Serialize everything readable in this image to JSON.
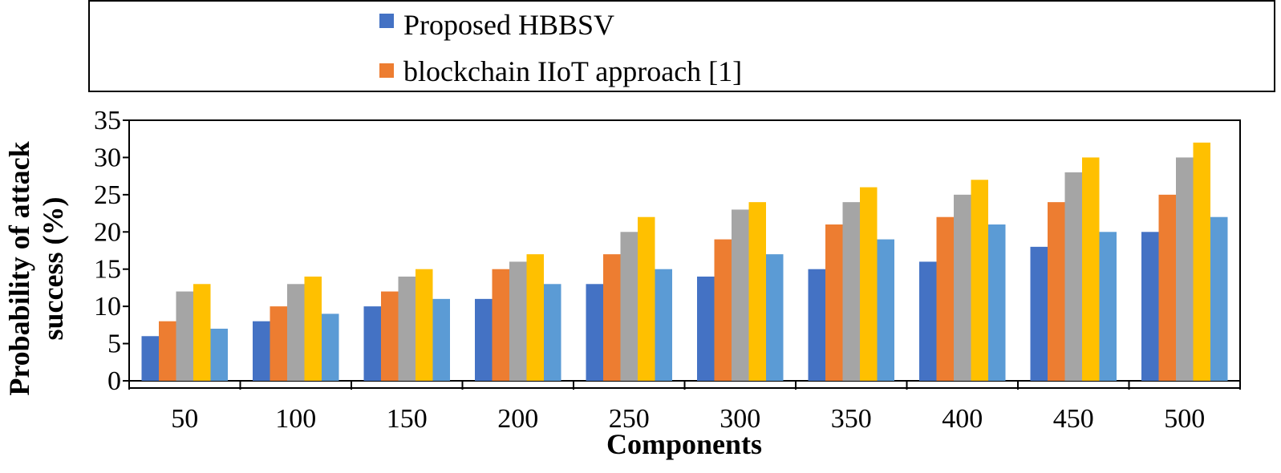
{
  "chart_data": {
    "type": "bar",
    "title": "",
    "xlabel": "Components",
    "ylabel_lines": [
      "Probability of attack",
      "success (%)"
    ],
    "categories": [
      "50",
      "100",
      "150",
      "200",
      "250",
      "300",
      "350",
      "400",
      "450",
      "500"
    ],
    "ylim": [
      0,
      35
    ],
    "yticks": [
      0,
      5,
      10,
      15,
      20,
      25,
      30,
      35
    ],
    "grid": false,
    "legend_position": "top",
    "series": [
      {
        "name": "Proposed HBBSV",
        "color": "#4472C4",
        "values": [
          6,
          8,
          10,
          11,
          13,
          14,
          15,
          16,
          18,
          20
        ]
      },
      {
        "name": "blockchain IIoT approach [1]",
        "color": "#ED7D31",
        "values": [
          8,
          10,
          12,
          15,
          17,
          19,
          21,
          22,
          24,
          25
        ]
      },
      {
        "color": "#A5A5A5",
        "values": [
          12,
          13,
          14,
          16,
          20,
          23,
          24,
          25,
          28,
          30
        ]
      },
      {
        "color": "#FFC000",
        "values": [
          13,
          14,
          15,
          17,
          22,
          24,
          26,
          27,
          30,
          32
        ]
      },
      {
        "color": "#5B9BD5",
        "values": [
          7,
          9,
          11,
          13,
          15,
          17,
          19,
          21,
          20,
          22
        ]
      }
    ]
  }
}
